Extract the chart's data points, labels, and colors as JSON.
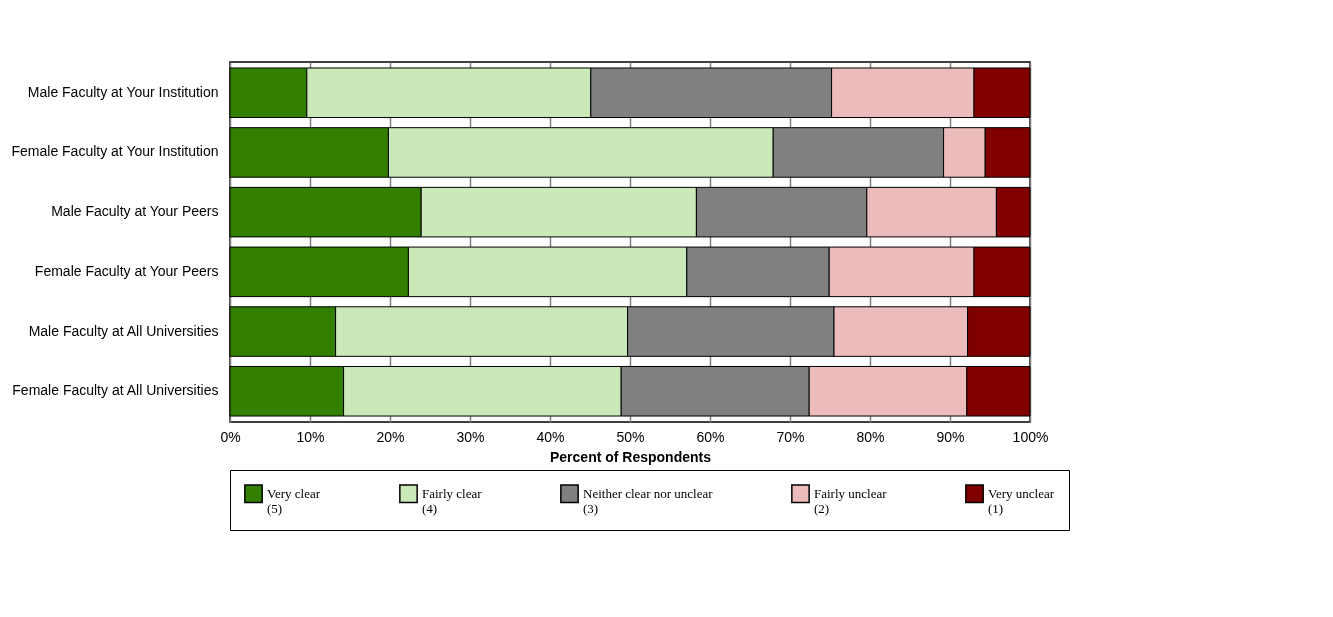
{
  "chart_data": {
    "type": "bar",
    "orientation": "horizontal",
    "stacked": true,
    "categories": [
      "Male Faculty at Your Institution",
      "Female Faculty at Your Institution",
      "Male Faculty at Your Peers",
      "Female Faculty at Your Peers",
      "Male Faculty at All Universities",
      "Female Faculty at All Universities"
    ],
    "series": [
      {
        "name": "Very clear\n(5)",
        "color": "#338000",
        "values": [
          9.6,
          19.8,
          23.9,
          22.3,
          13.2,
          14.2
        ]
      },
      {
        "name": "Fairly clear\n(4)",
        "color": "#cbe8b8",
        "values": [
          35.5,
          48.1,
          34.4,
          34.8,
          36.5,
          34.7
        ]
      },
      {
        "name": "Neither clear nor unclear\n(3)",
        "color": "#808080",
        "values": [
          30.1,
          21.3,
          21.3,
          17.8,
          25.8,
          23.5
        ]
      },
      {
        "name": "Fairly unclear\n(2)",
        "color": "#ecbcbc",
        "values": [
          17.8,
          5.2,
          16.2,
          18.1,
          16.7,
          19.7
        ]
      },
      {
        "name": "Very unclear\n(1)",
        "color": "#800000",
        "values": [
          7.0,
          5.6,
          4.2,
          7.0,
          7.8,
          7.9
        ]
      }
    ],
    "xlabel": "Percent of Respondents",
    "xlim": [
      0,
      100
    ],
    "xticks": [
      {
        "value": 0,
        "label": "0%"
      },
      {
        "value": 10,
        "label": "10%"
      },
      {
        "value": 20,
        "label": "20%"
      },
      {
        "value": 30,
        "label": "30%"
      },
      {
        "value": 40,
        "label": "40%"
      },
      {
        "value": 50,
        "label": "50%"
      },
      {
        "value": 60,
        "label": "60%"
      },
      {
        "value": 70,
        "label": "70%"
      },
      {
        "value": 80,
        "label": "80%"
      },
      {
        "value": 90,
        "label": "90%"
      },
      {
        "value": 100,
        "label": "100%"
      }
    ],
    "grid": "x",
    "legend": "bottom"
  }
}
